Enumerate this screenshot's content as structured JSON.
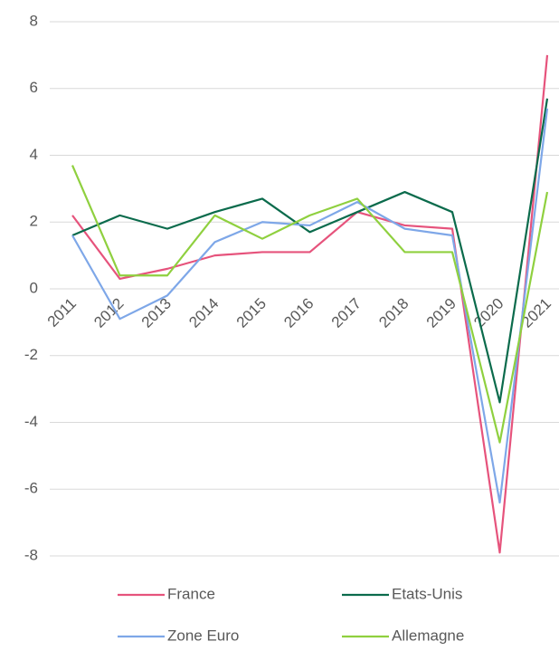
{
  "chart_data": {
    "type": "line",
    "categories": [
      "2011",
      "2012",
      "2013",
      "2014",
      "2015",
      "2016",
      "2017",
      "2018",
      "2019",
      "2020",
      "2021"
    ],
    "series": [
      {
        "name": "France",
        "color": "#e6537c",
        "values": [
          2.2,
          0.3,
          0.6,
          1.0,
          1.1,
          1.1,
          2.3,
          1.9,
          1.8,
          -7.9,
          7.0
        ]
      },
      {
        "name": "Etats-Unis",
        "color": "#0b6b4c",
        "values": [
          1.6,
          2.2,
          1.8,
          2.3,
          2.7,
          1.7,
          2.3,
          2.9,
          2.3,
          -3.4,
          5.7
        ]
      },
      {
        "name": "Zone Euro",
        "color": "#7ea7e8",
        "values": [
          1.6,
          -0.9,
          -0.2,
          1.4,
          2.0,
          1.9,
          2.6,
          1.8,
          1.6,
          -6.4,
          5.4
        ]
      },
      {
        "name": "Allemagne",
        "color": "#8fd03f",
        "values": [
          3.7,
          0.4,
          0.4,
          2.2,
          1.5,
          2.2,
          2.7,
          1.1,
          1.1,
          -4.6,
          2.9
        ]
      }
    ],
    "ylim": [
      -8,
      8
    ],
    "yticks": [
      -8,
      -6,
      -4,
      -2,
      0,
      2,
      4,
      6,
      8
    ],
    "grid": true,
    "legend": "bottom"
  }
}
